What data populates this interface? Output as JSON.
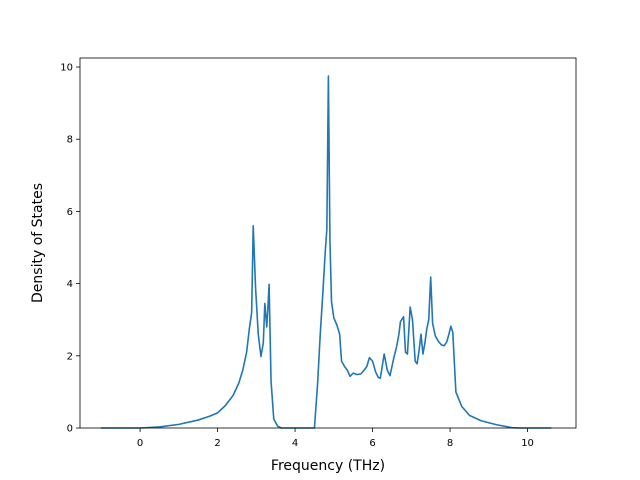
{
  "chart_data": {
    "type": "line",
    "xlabel": "Frequency (THz)",
    "ylabel": "Density of States",
    "xlim": [
      -1.55,
      11.25
    ],
    "ylim": [
      0,
      10.25
    ],
    "xticks": [
      0,
      2,
      4,
      6,
      8,
      10
    ],
    "yticks": [
      0,
      2,
      4,
      6,
      8,
      10
    ],
    "grid": false,
    "series": [
      {
        "color": "#1f77b4",
        "x": [
          -1.0,
          0.0,
          0.5,
          1.0,
          1.5,
          1.8,
          2.0,
          2.2,
          2.4,
          2.55,
          2.65,
          2.75,
          2.82,
          2.88,
          2.92,
          2.98,
          3.05,
          3.12,
          3.18,
          3.22,
          3.27,
          3.3,
          3.33,
          3.38,
          3.45,
          3.55,
          3.65,
          4.0,
          4.5,
          4.58,
          4.65,
          4.72,
          4.78,
          4.82,
          4.86,
          4.9,
          4.94,
          5.0,
          5.08,
          5.15,
          5.2,
          5.28,
          5.35,
          5.42,
          5.5,
          5.6,
          5.7,
          5.78,
          5.85,
          5.92,
          6.0,
          6.08,
          6.15,
          6.2,
          6.3,
          6.38,
          6.45,
          6.55,
          6.62,
          6.68,
          6.72,
          6.8,
          6.85,
          6.9,
          6.97,
          7.03,
          7.1,
          7.15,
          7.2,
          7.25,
          7.3,
          7.35,
          7.4,
          7.45,
          7.5,
          7.55,
          7.62,
          7.7,
          7.78,
          7.85,
          7.92,
          7.97,
          8.02,
          8.07,
          8.15,
          8.3,
          8.5,
          8.8,
          9.2,
          9.6,
          9.8,
          10.6
        ],
        "y": [
          0.0,
          0.0,
          0.03,
          0.1,
          0.22,
          0.33,
          0.42,
          0.62,
          0.9,
          1.25,
          1.6,
          2.1,
          2.75,
          3.2,
          5.6,
          3.9,
          2.6,
          1.98,
          2.35,
          3.45,
          2.8,
          3.35,
          3.98,
          1.3,
          0.25,
          0.05,
          0.0,
          0.0,
          0.0,
          1.2,
          2.6,
          3.8,
          4.9,
          5.5,
          9.75,
          5.2,
          3.5,
          3.05,
          2.85,
          2.6,
          1.85,
          1.7,
          1.6,
          1.43,
          1.52,
          1.48,
          1.5,
          1.6,
          1.7,
          1.95,
          1.85,
          1.55,
          1.4,
          1.38,
          2.05,
          1.6,
          1.45,
          1.95,
          2.25,
          2.6,
          2.95,
          3.08,
          2.1,
          2.05,
          3.35,
          3.0,
          1.85,
          1.78,
          2.15,
          2.6,
          2.05,
          2.35,
          2.75,
          3.0,
          4.18,
          2.9,
          2.55,
          2.4,
          2.3,
          2.28,
          2.4,
          2.6,
          2.82,
          2.65,
          1.0,
          0.6,
          0.35,
          0.2,
          0.09,
          0.01,
          0.0,
          0.0
        ]
      }
    ]
  }
}
